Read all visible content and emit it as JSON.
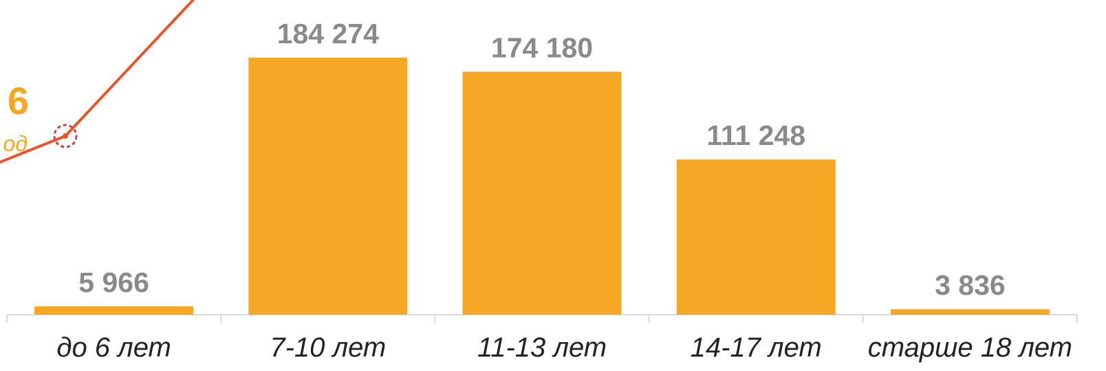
{
  "chart_data": {
    "type": "bar",
    "categories": [
      "до 6 лет",
      "7-10 лет",
      "11-13 лет",
      "14-17 лет",
      "старше 18 лет"
    ],
    "values": [
      5966,
      184274,
      174180,
      111248,
      3836
    ],
    "value_labels": [
      "5 966",
      "184 274",
      "174 180",
      "111 248",
      "3 836"
    ],
    "title": "",
    "xlabel": "",
    "ylabel": "",
    "ylim": [
      0,
      200000
    ],
    "grid": false,
    "legend": "none"
  },
  "overlay": {
    "number_fragment": "6",
    "caption_fragment": "од"
  },
  "colors": {
    "bar": "#F5A623",
    "value_label": "#8A8A8A",
    "tick_label": "#222222",
    "axis": "#D9D9D9",
    "overlay_line": "#E8552A",
    "overlay_text": "#F5A623",
    "overlay_marker": "#C0444A"
  }
}
